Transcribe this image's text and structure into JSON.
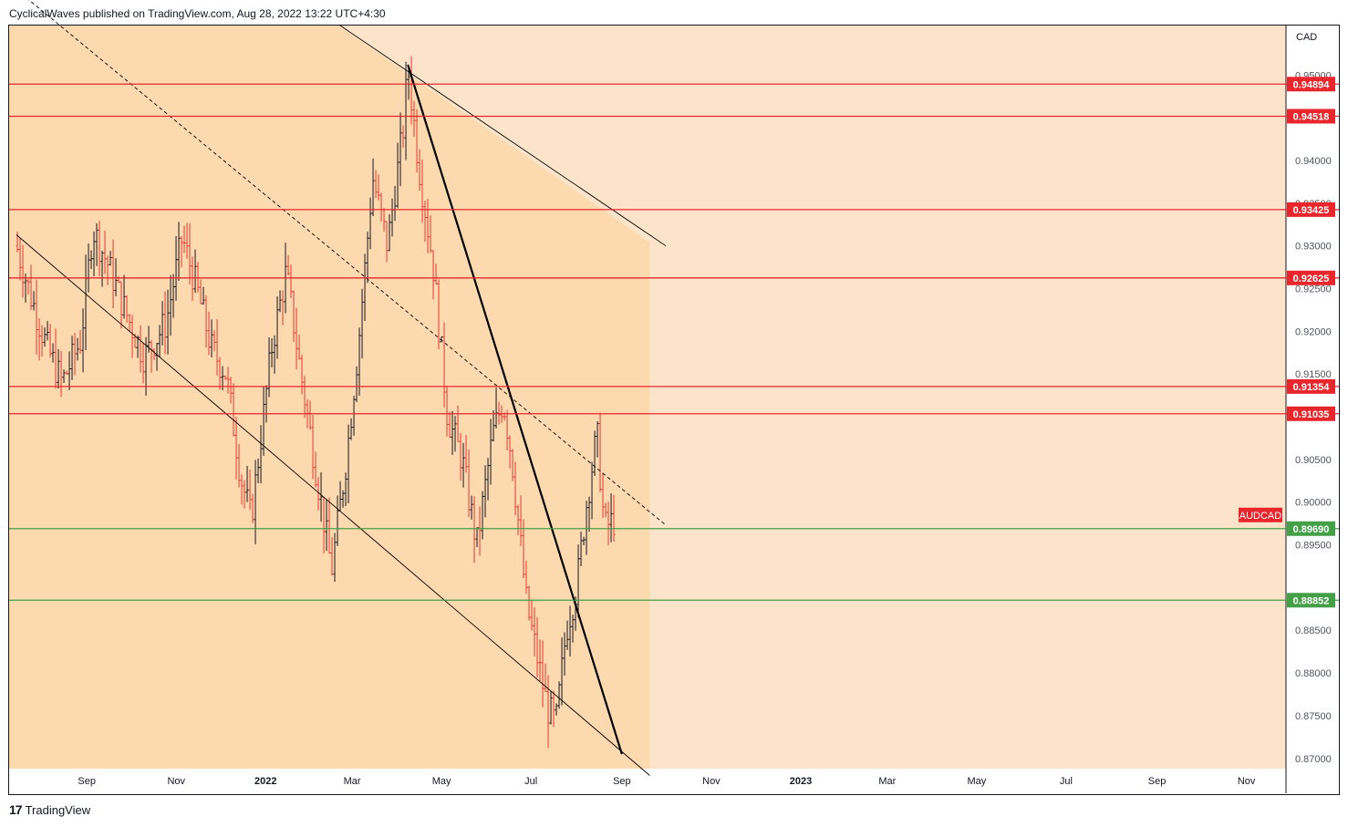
{
  "header": {
    "publisher_line": "CyclicalWaves published on TradingView.com, Aug 28, 2022 13:22 UTC+4:30"
  },
  "footer": {
    "brand": "TradingView",
    "logo_glyph": "17"
  },
  "colors": {
    "background": "#fce4ca",
    "channel_fill": "#fcd9ae",
    "resistance_line": "#e8262c",
    "support_line": "#43a047",
    "bear_candle": "#e53935",
    "bull_candle": "#131722",
    "trendline": "#000000",
    "symbol_label": "#e8262c"
  },
  "chart_data": {
    "type": "ohlc",
    "symbol": "AUDCAD",
    "currency": "CAD",
    "x_tick_labels": [
      "Sep",
      "Nov",
      "2022",
      "Mar",
      "May",
      "Jul",
      "Sep",
      "Nov",
      "2023",
      "Mar",
      "May",
      "Jul",
      "Sep",
      "Nov"
    ],
    "y_tick_labels": [
      "0.95000",
      "0.94000",
      "0.93500",
      "0.93000",
      "0.92500",
      "0.92000",
      "0.91500",
      "0.90500",
      "0.90000",
      "0.89500",
      "0.88500",
      "0.88000",
      "0.87500",
      "0.87000"
    ],
    "ylim": [
      0.8688,
      0.9558
    ],
    "horizontal_levels": [
      {
        "value": "0.94894",
        "kind": "resistance"
      },
      {
        "value": "0.94518",
        "kind": "resistance"
      },
      {
        "value": "0.93425",
        "kind": "resistance"
      },
      {
        "value": "0.92625",
        "kind": "resistance"
      },
      {
        "value": "0.91354",
        "kind": "resistance"
      },
      {
        "value": "0.91035",
        "kind": "resistance"
      },
      {
        "value": "0.89690",
        "kind": "support"
      },
      {
        "value": "0.88852",
        "kind": "support"
      }
    ],
    "price_path": [
      [
        "2021-07-15",
        0.93
      ],
      [
        "2021-07-25",
        0.924
      ],
      [
        "2021-08-05",
        0.918
      ],
      [
        "2021-08-15",
        0.914
      ],
      [
        "2021-08-28",
        0.919
      ],
      [
        "2021-09-05",
        0.932
      ],
      [
        "2021-09-15",
        0.928
      ],
      [
        "2021-09-28",
        0.922
      ],
      [
        "2021-10-10",
        0.917
      ],
      [
        "2021-10-25",
        0.921
      ],
      [
        "2021-11-05",
        0.931
      ],
      [
        "2021-11-15",
        0.925
      ],
      [
        "2021-11-25",
        0.918
      ],
      [
        "2021-12-05",
        0.915
      ],
      [
        "2021-12-15",
        0.903
      ],
      [
        "2021-12-22",
        0.898
      ],
      [
        "2022-01-05",
        0.918
      ],
      [
        "2022-01-15",
        0.927
      ],
      [
        "2022-01-25",
        0.915
      ],
      [
        "2022-02-05",
        0.903
      ],
      [
        "2022-02-15",
        0.892
      ],
      [
        "2022-02-25",
        0.905
      ],
      [
        "2022-03-05",
        0.918
      ],
      [
        "2022-03-15",
        0.938
      ],
      [
        "2022-03-25",
        0.93
      ],
      [
        "2022-04-05",
        0.944
      ],
      [
        "2022-04-08",
        0.951
      ],
      [
        "2022-04-15",
        0.94
      ],
      [
        "2022-04-25",
        0.928
      ],
      [
        "2022-05-05",
        0.91
      ],
      [
        "2022-05-15",
        0.905
      ],
      [
        "2022-05-25",
        0.895
      ],
      [
        "2022-06-05",
        0.908
      ],
      [
        "2022-06-12",
        0.912
      ],
      [
        "2022-06-18",
        0.905
      ],
      [
        "2022-06-28",
        0.888
      ],
      [
        "2022-07-05",
        0.882
      ],
      [
        "2022-07-12",
        0.876
      ],
      [
        "2022-07-18",
        0.874
      ],
      [
        "2022-07-25",
        0.885
      ],
      [
        "2022-08-01",
        0.89
      ],
      [
        "2022-08-08",
        0.9
      ],
      [
        "2022-08-15",
        0.908
      ],
      [
        "2022-08-20",
        0.897
      ],
      [
        "2022-08-28",
        0.898
      ]
    ],
    "annotations": [
      {
        "type": "channel",
        "style": "solid",
        "from": [
          "2021-07-15",
          0.9313
        ],
        "to": [
          "2022-09-20",
          0.868
        ]
      },
      {
        "type": "channel",
        "style": "solid",
        "from": [
          "2022-02-20",
          0.9559
        ],
        "to": [
          "2022-10-01",
          0.93
        ]
      },
      {
        "type": "channel",
        "style": "dashed",
        "from": [
          "2021-07-15",
          0.96
        ],
        "to": [
          "2022-10-01",
          0.8973
        ]
      },
      {
        "type": "trendline",
        "style": "bold",
        "from": [
          "2022-04-08",
          0.9512
        ],
        "to": [
          "2022-09-01",
          0.8705
        ]
      }
    ]
  }
}
